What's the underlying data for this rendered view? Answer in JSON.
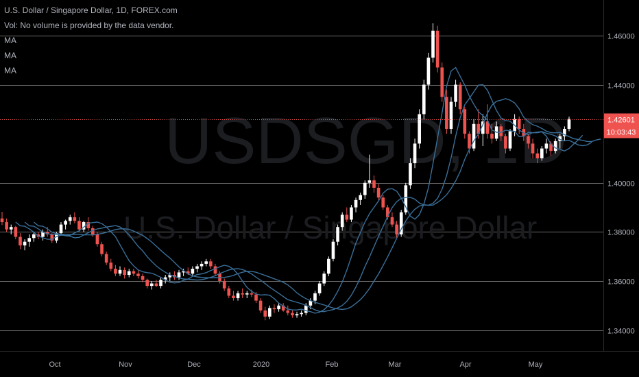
{
  "legend": {
    "title": "U.S. Dollar / Singapore Dollar, 1D, FOREX.com",
    "volume": "Vol: No volume is provided by the data vendor.",
    "ma_labels": [
      "MA",
      "MA",
      "MA"
    ]
  },
  "watermark": {
    "symbol": "USDSGD, 1D",
    "name": "U.S. Dollar / Singapore Dollar"
  },
  "price_badge": "1.42601",
  "countdown_badge": "10:03:43",
  "colors": {
    "up": "#ffffff",
    "down": "#ef5350",
    "ma": "#3a6f99",
    "price_line": "#ef5350",
    "grid": "#6e6e6e",
    "countdown_bg": "#ef5350"
  },
  "chart_data": {
    "type": "candlestick",
    "symbol": "USDSGD",
    "interval": "1D",
    "x_ticks": [
      "Oct",
      "Nov",
      "Dec",
      "2020",
      "Feb",
      "Mar",
      "Apr",
      "May"
    ],
    "y_ticks": [
      "1.46000",
      "1.44000",
      "1.40000",
      "1.38000",
      "1.36000",
      "1.34000"
    ],
    "ylim": [
      1.3315,
      1.4745
    ],
    "last_price": 1.42601,
    "grid": true,
    "series": [
      {
        "ohlc": [
          [
            1.3855,
            1.3882,
            1.3828,
            1.384
          ],
          [
            1.384,
            1.3855,
            1.38,
            1.381
          ],
          [
            1.381,
            1.383,
            1.379,
            1.382
          ],
          [
            1.382,
            1.3825,
            1.377,
            1.378
          ],
          [
            1.378,
            1.3795,
            1.373,
            1.3745
          ],
          [
            1.3745,
            1.377,
            1.3725,
            1.376
          ],
          [
            1.376,
            1.379,
            1.374,
            1.3775
          ],
          [
            1.3775,
            1.38,
            1.376,
            1.379
          ],
          [
            1.379,
            1.38,
            1.377,
            1.378
          ],
          [
            1.378,
            1.381,
            1.3765,
            1.38
          ],
          [
            1.38,
            1.382,
            1.378,
            1.379
          ],
          [
            1.379,
            1.3795,
            1.3755,
            1.3765
          ],
          [
            1.3765,
            1.38,
            1.3755,
            1.3795
          ],
          [
            1.3795,
            1.384,
            1.3785,
            1.383
          ],
          [
            1.383,
            1.385,
            1.381,
            1.3845
          ],
          [
            1.3845,
            1.387,
            1.383,
            1.386
          ],
          [
            1.386,
            1.388,
            1.3835,
            1.3845
          ],
          [
            1.3845,
            1.386,
            1.38,
            1.381
          ],
          [
            1.381,
            1.3845,
            1.38,
            1.384
          ],
          [
            1.384,
            1.386,
            1.3805,
            1.3815
          ],
          [
            1.3815,
            1.3825,
            1.378,
            1.379
          ],
          [
            1.379,
            1.38,
            1.374,
            1.375
          ],
          [
            1.375,
            1.376,
            1.37,
            1.371
          ],
          [
            1.371,
            1.372,
            1.3665,
            1.3675
          ],
          [
            1.3675,
            1.369,
            1.364,
            1.365
          ],
          [
            1.365,
            1.3665,
            1.362,
            1.363
          ],
          [
            1.363,
            1.366,
            1.362,
            1.3645
          ],
          [
            1.3645,
            1.3655,
            1.361,
            1.3625
          ],
          [
            1.3625,
            1.365,
            1.3615,
            1.364
          ],
          [
            1.364,
            1.365,
            1.362,
            1.363
          ],
          [
            1.363,
            1.3645,
            1.361,
            1.362
          ],
          [
            1.362,
            1.363,
            1.3595,
            1.3605
          ],
          [
            1.3605,
            1.361,
            1.357,
            1.358
          ],
          [
            1.358,
            1.36,
            1.3565,
            1.359
          ],
          [
            1.359,
            1.3605,
            1.3575,
            1.358
          ],
          [
            1.358,
            1.3615,
            1.357,
            1.3605
          ],
          [
            1.3605,
            1.3625,
            1.359,
            1.3615
          ],
          [
            1.3615,
            1.3635,
            1.36,
            1.3625
          ],
          [
            1.3625,
            1.364,
            1.3605,
            1.3615
          ],
          [
            1.3615,
            1.3645,
            1.3605,
            1.3635
          ],
          [
            1.3635,
            1.365,
            1.362,
            1.364
          ],
          [
            1.364,
            1.3655,
            1.3625,
            1.363
          ],
          [
            1.363,
            1.366,
            1.362,
            1.365
          ],
          [
            1.365,
            1.367,
            1.3635,
            1.366
          ],
          [
            1.366,
            1.368,
            1.3645,
            1.367
          ],
          [
            1.367,
            1.369,
            1.366,
            1.368
          ],
          [
            1.368,
            1.369,
            1.365,
            1.366
          ],
          [
            1.366,
            1.367,
            1.362,
            1.363
          ],
          [
            1.363,
            1.364,
            1.359,
            1.36
          ],
          [
            1.36,
            1.361,
            1.356,
            1.357
          ],
          [
            1.357,
            1.358,
            1.353,
            1.354
          ],
          [
            1.354,
            1.356,
            1.352,
            1.353
          ],
          [
            1.353,
            1.356,
            1.352,
            1.355
          ],
          [
            1.355,
            1.357,
            1.353,
            1.3545
          ],
          [
            1.3545,
            1.356,
            1.353,
            1.355
          ],
          [
            1.355,
            1.3565,
            1.3535,
            1.3545
          ],
          [
            1.3545,
            1.3555,
            1.351,
            1.352
          ],
          [
            1.352,
            1.353,
            1.347,
            1.348
          ],
          [
            1.348,
            1.3495,
            1.344,
            1.3455
          ],
          [
            1.3455,
            1.35,
            1.3445,
            1.349
          ],
          [
            1.349,
            1.3505,
            1.347,
            1.3485
          ],
          [
            1.3485,
            1.351,
            1.3475,
            1.35
          ],
          [
            1.35,
            1.351,
            1.3475,
            1.348
          ],
          [
            1.348,
            1.35,
            1.346,
            1.347
          ],
          [
            1.347,
            1.348,
            1.345,
            1.346
          ],
          [
            1.346,
            1.3475,
            1.345,
            1.3465
          ],
          [
            1.3465,
            1.348,
            1.3455,
            1.347
          ],
          [
            1.347,
            1.351,
            1.346,
            1.35
          ],
          [
            1.35,
            1.353,
            1.3485,
            1.352
          ],
          [
            1.352,
            1.356,
            1.3505,
            1.355
          ],
          [
            1.355,
            1.36,
            1.354,
            1.359
          ],
          [
            1.359,
            1.364,
            1.358,
            1.363
          ],
          [
            1.363,
            1.37,
            1.362,
            1.369
          ],
          [
            1.369,
            1.377,
            1.368,
            1.376
          ],
          [
            1.376,
            1.383,
            1.3745,
            1.382
          ],
          [
            1.382,
            1.388,
            1.3805,
            1.387
          ],
          [
            1.387,
            1.39,
            1.384,
            1.385
          ],
          [
            1.385,
            1.391,
            1.384,
            1.39
          ],
          [
            1.39,
            1.394,
            1.388,
            1.393
          ],
          [
            1.393,
            1.396,
            1.391,
            1.395
          ],
          [
            1.395,
            1.401,
            1.3935,
            1.4
          ],
          [
            1.4,
            1.4115,
            1.398,
            1.401
          ],
          [
            1.401,
            1.403,
            1.396,
            1.398
          ],
          [
            1.398,
            1.3995,
            1.393,
            1.394
          ],
          [
            1.394,
            1.395,
            1.389,
            1.39
          ],
          [
            1.39,
            1.391,
            1.385,
            1.386
          ],
          [
            1.386,
            1.388,
            1.382,
            1.383
          ],
          [
            1.383,
            1.3845,
            1.3775,
            1.379
          ],
          [
            1.379,
            1.389,
            1.378,
            1.388
          ],
          [
            1.388,
            1.4,
            1.387,
            1.399
          ],
          [
            1.399,
            1.41,
            1.3975,
            1.408
          ],
          [
            1.408,
            1.418,
            1.406,
            1.416
          ],
          [
            1.416,
            1.43,
            1.414,
            1.428
          ],
          [
            1.428,
            1.442,
            1.426,
            1.44
          ],
          [
            1.44,
            1.453,
            1.438,
            1.451
          ],
          [
            1.451,
            1.465,
            1.449,
            1.462
          ],
          [
            1.462,
            1.464,
            1.445,
            1.447
          ],
          [
            1.447,
            1.449,
            1.433,
            1.435
          ],
          [
            1.435,
            1.438,
            1.42,
            1.422
          ],
          [
            1.422,
            1.435,
            1.42,
            1.433
          ],
          [
            1.433,
            1.442,
            1.431,
            1.44
          ],
          [
            1.44,
            1.441,
            1.428,
            1.43
          ],
          [
            1.43,
            1.431,
            1.418,
            1.42
          ],
          [
            1.42,
            1.421,
            1.412,
            1.414
          ],
          [
            1.414,
            1.426,
            1.413,
            1.424
          ],
          [
            1.424,
            1.43,
            1.418,
            1.42
          ],
          [
            1.42,
            1.428,
            1.415,
            1.425
          ],
          [
            1.425,
            1.432,
            1.418,
            1.42
          ],
          [
            1.42,
            1.424,
            1.416,
            1.418
          ],
          [
            1.418,
            1.425,
            1.417,
            1.423
          ],
          [
            1.423,
            1.424,
            1.417,
            1.419
          ],
          [
            1.419,
            1.42,
            1.412,
            1.414
          ],
          [
            1.414,
            1.422,
            1.413,
            1.421
          ],
          [
            1.421,
            1.428,
            1.419,
            1.426
          ],
          [
            1.426,
            1.427,
            1.42,
            1.422
          ],
          [
            1.422,
            1.424,
            1.417,
            1.419
          ],
          [
            1.419,
            1.42,
            1.414,
            1.416
          ],
          [
            1.416,
            1.418,
            1.41,
            1.412
          ],
          [
            1.412,
            1.414,
            1.408,
            1.41
          ],
          [
            1.41,
            1.415,
            1.409,
            1.414
          ],
          [
            1.414,
            1.418,
            1.412,
            1.416
          ],
          [
            1.416,
            1.417,
            1.411,
            1.413
          ],
          [
            1.413,
            1.418,
            1.412,
            1.417
          ],
          [
            1.417,
            1.42,
            1.414,
            1.419
          ],
          [
            1.419,
            1.423,
            1.417,
            1.422
          ],
          [
            1.422,
            1.427,
            1.421,
            1.426
          ]
        ]
      },
      {
        "name": "",
        "ma_periods_shown": 3
      }
    ]
  }
}
